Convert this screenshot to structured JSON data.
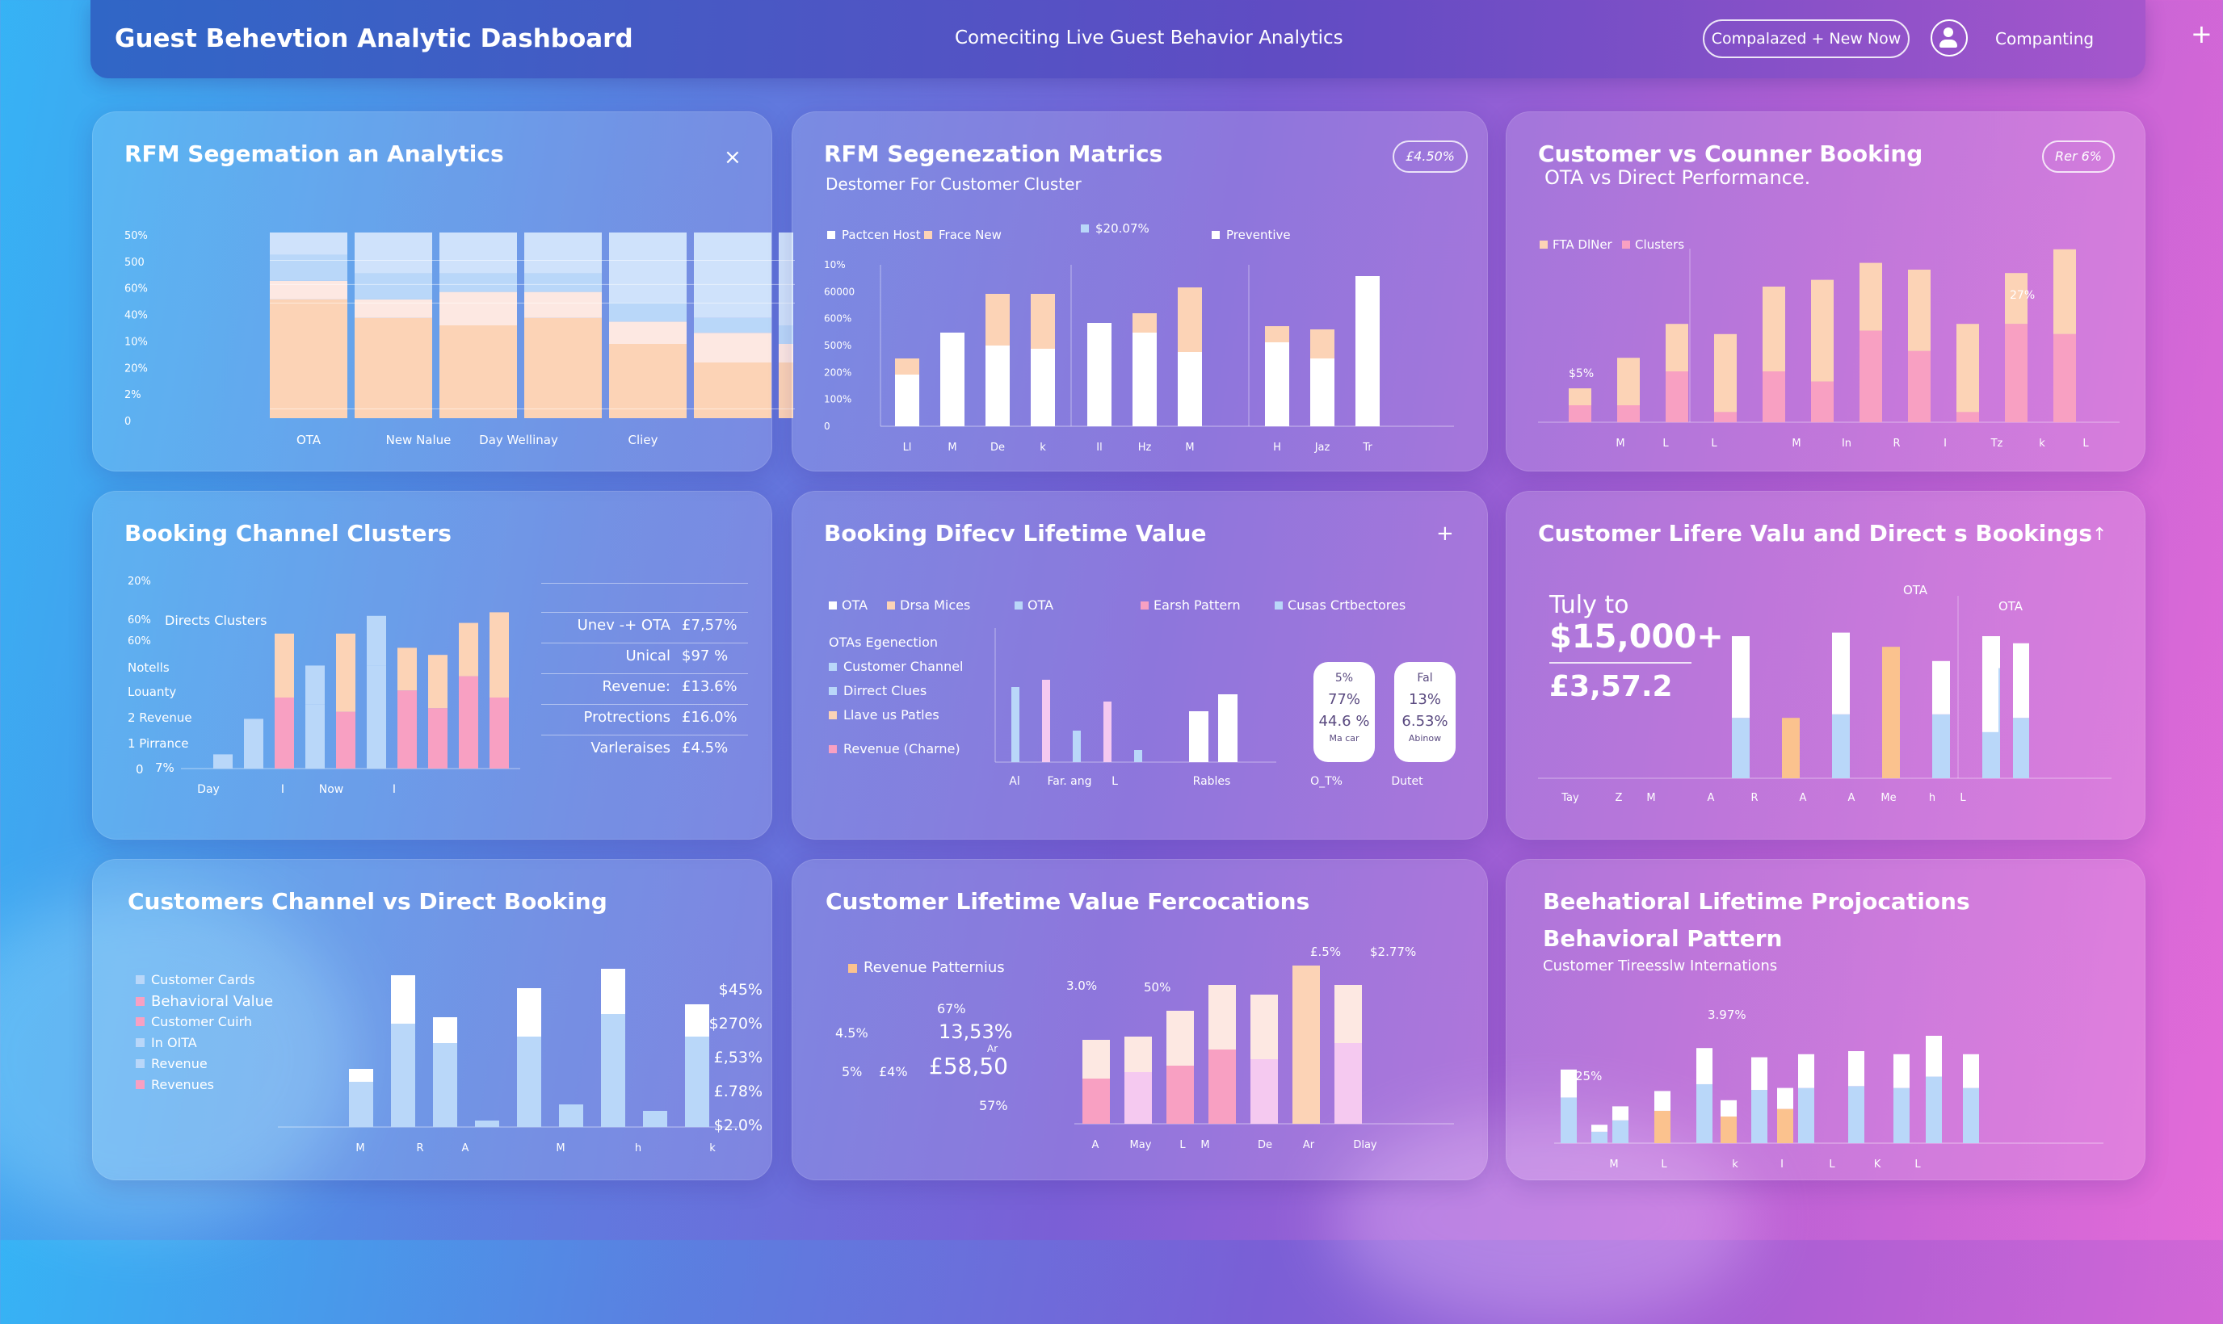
{
  "header": {
    "title": "Guest Behevtion Analytic Dashboard",
    "center": "Comeciting Live Guest Behavior Analytics",
    "pill": "Compalazed + New Now",
    "user": "Companting",
    "plus": "+"
  },
  "colors": {
    "pink": "#f8a0c2",
    "peach": "#fcd3b6",
    "blue": "#b9d7f9",
    "white": "#ffffff",
    "cream": "#fde8e2",
    "orange": "#fbc28e",
    "lilac": "#f5c9f0"
  },
  "p1": {
    "title": "RFM Segemation an Analytics",
    "close": "×",
    "yticks": [
      "50%",
      "500",
      "60%",
      "40%",
      "10%",
      "20%",
      "2%",
      "0"
    ],
    "xlabels": [
      "OTA",
      "New Nalue",
      "Day Wellinay",
      "Cliey"
    ],
    "bands": [
      [
        0.85,
        1
      ],
      [
        0.72,
        0.85
      ],
      [
        0.62,
        0.72
      ],
      [
        0.05,
        0.62
      ]
    ],
    "stacks": [
      [
        0.64,
        0.1,
        0.14,
        0.12
      ],
      [
        0.54,
        0.1,
        0.14,
        0.22
      ],
      [
        0.5,
        0.18,
        0.1,
        0.22
      ],
      [
        0.54,
        0.14,
        0.1,
        0.22
      ],
      [
        0.4,
        0.12,
        0.1,
        0.38
      ],
      [
        0.3,
        0.16,
        0.08,
        0.46
      ],
      [
        0.3,
        0.1,
        0.1,
        0.5
      ]
    ]
  },
  "p2": {
    "title": "RFM Segenezation Matrics",
    "sub": "Destomer For Customer Cluster",
    "badge": "£4.50%",
    "legend": [
      "Pactcen Host",
      "Frace New",
      "$20.07%",
      "Preventive"
    ],
    "yticks": [
      "10%",
      "60000",
      "600%",
      "500%",
      "200%",
      "100%",
      "0"
    ],
    "xlabels": [
      "Ll",
      "M",
      "De",
      "k",
      "Il",
      "Hz",
      "M",
      "H",
      "Jaz",
      "Tr"
    ],
    "groups": [
      [
        [
          0.32,
          0.1
        ],
        [
          0.58,
          0
        ],
        [
          0.5,
          0.32
        ],
        [
          0.48,
          0.34
        ]
      ],
      [
        [
          0.64,
          0
        ],
        [
          0.58,
          0.12
        ],
        [
          0.46,
          0.4
        ]
      ],
      [
        [
          0.52,
          0.1
        ],
        [
          0.42,
          0.18
        ],
        [
          0.93,
          0
        ]
      ]
    ]
  },
  "p3": {
    "title": "Customer vs Counner Booking",
    "sub": "OTA vs Direct Performance.",
    "badge": "Rer 6%",
    "legend": [
      "FTA DlNer",
      "Clusters"
    ],
    "ann": [
      "$5%",
      "27%"
    ],
    "xlabels": [
      "M",
      "L",
      "L",
      "M",
      "In",
      "R",
      "I",
      "Tz",
      "k",
      "L"
    ],
    "bars": [
      [
        0.1,
        0.1
      ],
      [
        0.1,
        0.28
      ],
      [
        0.3,
        0.28
      ],
      [
        0.06,
        0.46
      ],
      [
        0.3,
        0.5
      ],
      [
        0.24,
        0.6
      ],
      [
        0.54,
        0.4
      ],
      [
        0.42,
        0.48
      ],
      [
        0.06,
        0.52
      ],
      [
        0.58,
        0.3
      ],
      [
        0.52,
        0.5
      ]
    ]
  },
  "p4": {
    "title": "Booking Channel Clusters",
    "ylabels": [
      "20%",
      "60%",
      "60%",
      "Notells",
      "Louanty",
      "2 Revenue",
      "1 Pirrance",
      "0",
      "7%"
    ],
    "inline": "Directs Clusters",
    "xlabels": [
      "Day",
      "I",
      "Now",
      "I"
    ],
    "bars": [
      [
        0.08,
        0,
        "blue"
      ],
      [
        0.28,
        0,
        "blue"
      ],
      [
        0.4,
        0.36,
        "pink"
      ],
      [
        0.36,
        0.22,
        "blue"
      ],
      [
        0.32,
        0.44,
        "pink"
      ],
      [
        0.58,
        0.28,
        "blue"
      ],
      [
        0.44,
        0.24,
        "pink"
      ],
      [
        0.34,
        0.3,
        "pink"
      ],
      [
        0.52,
        0.3,
        "pink"
      ],
      [
        0.4,
        0.48,
        "pink"
      ]
    ],
    "rows": [
      [
        "Unev -+ OTA",
        "£7,57%"
      ],
      [
        "Unical",
        "$97 %"
      ],
      [
        "Revenue:",
        "£13.6%"
      ],
      [
        "Protrections",
        "£16.0%"
      ],
      [
        "Varleraises",
        "£4.5%"
      ]
    ]
  },
  "p5": {
    "title": "Booking Difecv Lifetime Value",
    "plus": "+",
    "legend": [
      "OTA",
      "Drsa Mices",
      "OTA",
      "Earsh Pattern",
      "Cusas Crtbectores"
    ],
    "list": [
      "OTAs Egenection",
      "Customer Channel",
      "Dirrect Clues",
      "Llave us Patles",
      "Revenue (Charne)"
    ],
    "xlabels": [
      "Al",
      "Far. ang",
      "L",
      "Rables",
      "O_T%",
      "Dutet"
    ],
    "bars": [
      [
        "blue",
        0.62
      ],
      [
        "pink",
        0.68
      ],
      [
        "blue",
        0.26
      ],
      [
        "pink",
        0.5
      ],
      [
        "blue",
        0.1
      ]
    ],
    "bars2": [
      0.42,
      0.56
    ],
    "card1": [
      "5%",
      "77%",
      "44.6 %",
      "Ma car"
    ],
    "card2": [
      "Fal",
      "13%",
      "6.53%",
      "Abinow"
    ]
  },
  "p6": {
    "title": "Customer Lifere Valu and Direct s Bookings",
    "arrow": "↑",
    "big1": "Tuly to",
    "big2": "$15,000+",
    "big3": "£3,57.2",
    "ann": [
      "OTA",
      "OTA"
    ],
    "xlabels": [
      "Tay",
      "Z",
      "M",
      "A",
      "R",
      "A",
      "A",
      "Me",
      "h",
      "L"
    ],
    "bars": [
      [
        0.34,
        0.46,
        "blue"
      ],
      [
        0.34,
        0,
        "orange"
      ],
      [
        0.36,
        0.46,
        "blue"
      ],
      [
        0.74,
        0,
        "orange"
      ],
      [
        0.36,
        0.3,
        "blue"
      ],
      [
        0.62,
        0.18,
        "blue"
      ]
    ]
  },
  "p7": {
    "title": "Customers Channel vs Direct Booking",
    "legend": [
      "Customer Cards",
      "Behavioral Value",
      "Customer Cuirh",
      "In OITA",
      "Revenue",
      "Revenues"
    ],
    "rightvals": [
      "$45%",
      "$270%",
      "£,53%",
      "£.78%",
      "$2.0%"
    ],
    "xlabels": [
      "M",
      "R",
      "A",
      "M",
      "h",
      "k"
    ],
    "bars": [
      [
        0.28,
        0.08
      ],
      [
        0.64,
        0.3
      ],
      [
        0.52,
        0.16
      ],
      [
        0.04,
        0
      ],
      [
        0.56,
        0.3
      ],
      [
        0.14,
        0
      ],
      [
        0.7,
        0.28
      ],
      [
        0.1,
        0
      ],
      [
        0.56,
        0.2
      ]
    ]
  },
  "p8": {
    "title": "Customer Lifetime Value Fercocations",
    "legend": "Revenue Patternius",
    "left": [
      "4.5%",
      "5%",
      "£4%"
    ],
    "vals": [
      "67%",
      "13,53%",
      "Ar",
      "£58,50",
      "57%"
    ],
    "ann": [
      "3.0%",
      "50%",
      "£.5%",
      "$2.77%"
    ],
    "xlabels": [
      "A",
      "May",
      "L",
      "M",
      "De",
      "Ar",
      "Dlay"
    ],
    "bars": [
      [
        0.28,
        0.24,
        "pink"
      ],
      [
        0.32,
        0.22,
        "pinkl"
      ],
      [
        0.36,
        0.34,
        "pink"
      ],
      [
        0.46,
        0.4,
        "pink"
      ],
      [
        0.4,
        0.4,
        "pinkl"
      ],
      [
        0.38,
        0.6,
        "peach"
      ],
      [
        0.5,
        0.36,
        "pinkl"
      ]
    ]
  },
  "p9": {
    "title": "Beehatioral Lifetime Projocations",
    "sub1": "Behavioral Pattern",
    "sub2": "Customer Tireesslw Internations",
    "ann": [
      "25%",
      "3.97%"
    ],
    "xlabels": [
      "M",
      "L",
      "k",
      "I",
      "L",
      "K",
      "L"
    ],
    "bars": [
      [
        "blue",
        0.48
      ],
      [
        "blue",
        0.12
      ],
      [
        "blue",
        0.24
      ],
      [
        "orange",
        0.34
      ],
      [
        "blue",
        0.62
      ],
      [
        "orange",
        0.28
      ],
      [
        "blue",
        0.56
      ],
      [
        "orange",
        0.36
      ],
      [
        "blue",
        0.58
      ],
      [
        "blue",
        0.6
      ],
      [
        "blue",
        0.58
      ],
      [
        "blue",
        0.7
      ],
      [
        "blue",
        0.58
      ]
    ]
  }
}
